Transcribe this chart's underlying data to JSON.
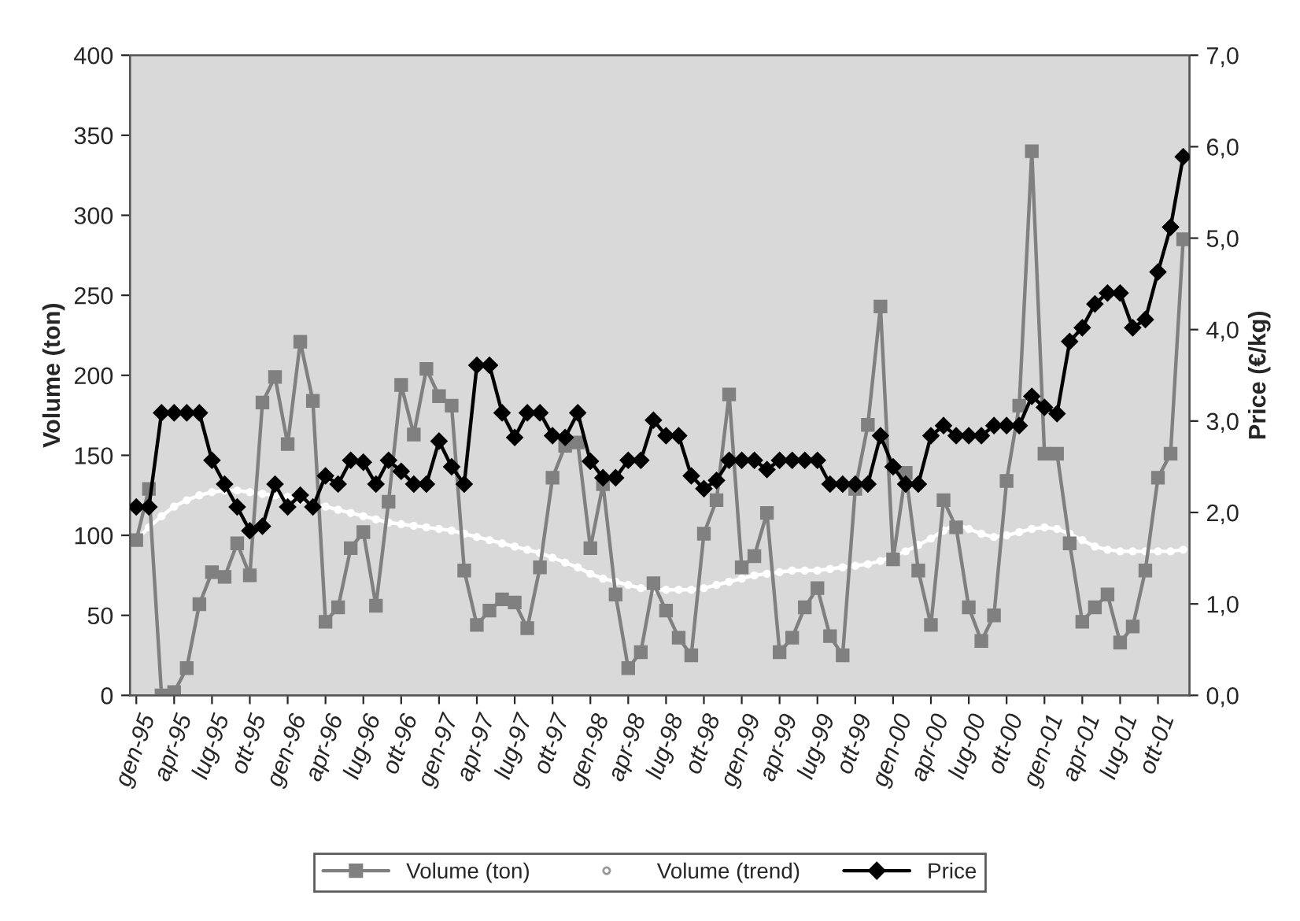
{
  "chart_data": {
    "type": "line",
    "categories": [
      "gen-95",
      null,
      null,
      "apr-95",
      null,
      null,
      "lug-95",
      null,
      null,
      "ott-95",
      null,
      null,
      "gen-96",
      null,
      null,
      "apr-96",
      null,
      null,
      "lug-96",
      null,
      null,
      "ott-96",
      null,
      null,
      "gen-97",
      null,
      null,
      "apr-97",
      null,
      null,
      "lug-97",
      null,
      null,
      "ott-97",
      null,
      null,
      "gen-98",
      null,
      null,
      "apr-98",
      null,
      null,
      "lug-98",
      null,
      null,
      "ott-98",
      null,
      null,
      "gen-99",
      null,
      null,
      "apr-99",
      null,
      null,
      "lug-99",
      null,
      null,
      "ott-99",
      null,
      null,
      "gen-00",
      null,
      null,
      "apr-00",
      null,
      null,
      "lug-00",
      null,
      null,
      "ott-00",
      null,
      null,
      "gen-01",
      null,
      null,
      "apr-01",
      null,
      null,
      "lug-01",
      null,
      null,
      "ott-01",
      null,
      null
    ],
    "ylabel": "Volume (ton)",
    "y2label": "Price (€/kg)",
    "ylim": [
      0,
      400
    ],
    "yticks": [
      0,
      50,
      100,
      150,
      200,
      250,
      300,
      350,
      400
    ],
    "y2lim": [
      0,
      7
    ],
    "y2ticks": [
      {
        "value": 0,
        "label": "0,0"
      },
      {
        "value": 1,
        "label": "1,0"
      },
      {
        "value": 2,
        "label": "2,0"
      },
      {
        "value": 3,
        "label": "3,0"
      },
      {
        "value": 4,
        "label": "4,0"
      },
      {
        "value": 5,
        "label": "5,0"
      },
      {
        "value": 6,
        "label": "6,0"
      },
      {
        "value": 7,
        "label": "7,0"
      }
    ],
    "grid": false,
    "legend": "bottom",
    "series": [
      {
        "name": "Volume (ton)",
        "color": "#808080",
        "marker": "square",
        "values": [
          97,
          129,
          0,
          2,
          17,
          57,
          77,
          74,
          95,
          75,
          183,
          199,
          157,
          221,
          184,
          46,
          55,
          92,
          102,
          56,
          121,
          194,
          163,
          204,
          187,
          181,
          78,
          44,
          53,
          60,
          58,
          42,
          80,
          136,
          156,
          158,
          92,
          132,
          63,
          17,
          27,
          70,
          53,
          36,
          25,
          101,
          122,
          188,
          80,
          87,
          114,
          27,
          36,
          55,
          67,
          37,
          25,
          129,
          169,
          243,
          85,
          139,
          78,
          44,
          122,
          105,
          55,
          34,
          50,
          134,
          181,
          340,
          151,
          151,
          95,
          46,
          55,
          63,
          33,
          43,
          78,
          136,
          151,
          285
        ]
      },
      {
        "name": "Volume (trend)",
        "color": "#ffffff",
        "marker": "circle",
        "values": [
          97,
          105,
          112,
          118,
          122,
          125,
          127,
          128,
          128,
          127,
          126,
          125,
          124,
          122,
          120,
          118,
          116,
          114,
          112,
          110,
          108,
          107,
          106,
          105,
          104,
          103,
          101,
          99,
          97,
          95,
          93,
          91,
          89,
          86,
          83,
          80,
          76,
          73,
          71,
          69,
          67,
          66,
          66,
          66,
          66,
          67,
          69,
          71,
          73,
          75,
          76,
          77,
          78,
          78,
          78,
          79,
          80,
          81,
          82,
          84,
          87,
          90,
          94,
          98,
          103,
          107,
          104,
          101,
          99,
          100,
          102,
          104,
          105,
          104,
          101,
          97,
          93,
          91,
          90,
          90,
          90,
          90,
          90,
          91
        ]
      },
      {
        "name": "Price",
        "color": "#000000",
        "marker": "diamond",
        "axis": "y2",
        "values": [
          2.06,
          2.06,
          3.09,
          3.09,
          3.09,
          3.09,
          2.57,
          2.31,
          2.06,
          1.8,
          1.85,
          2.31,
          2.06,
          2.19,
          2.06,
          2.4,
          2.31,
          2.57,
          2.55,
          2.31,
          2.57,
          2.45,
          2.31,
          2.31,
          2.78,
          2.5,
          2.31,
          3.61,
          3.61,
          3.09,
          2.82,
          3.09,
          3.09,
          2.84,
          2.82,
          3.09,
          2.56,
          2.38,
          2.38,
          2.57,
          2.57,
          3.01,
          2.84,
          2.84,
          2.4,
          2.26,
          2.35,
          2.57,
          2.57,
          2.57,
          2.47,
          2.57,
          2.57,
          2.57,
          2.57,
          2.31,
          2.31,
          2.31,
          2.31,
          2.84,
          2.5,
          2.31,
          2.31,
          2.84,
          2.95,
          2.84,
          2.84,
          2.84,
          2.95,
          2.95,
          2.95,
          3.27,
          3.15,
          3.08,
          3.87,
          4.02,
          4.28,
          4.4,
          4.4,
          4.02,
          4.11,
          4.63,
          5.12,
          5.89
        ]
      }
    ]
  }
}
